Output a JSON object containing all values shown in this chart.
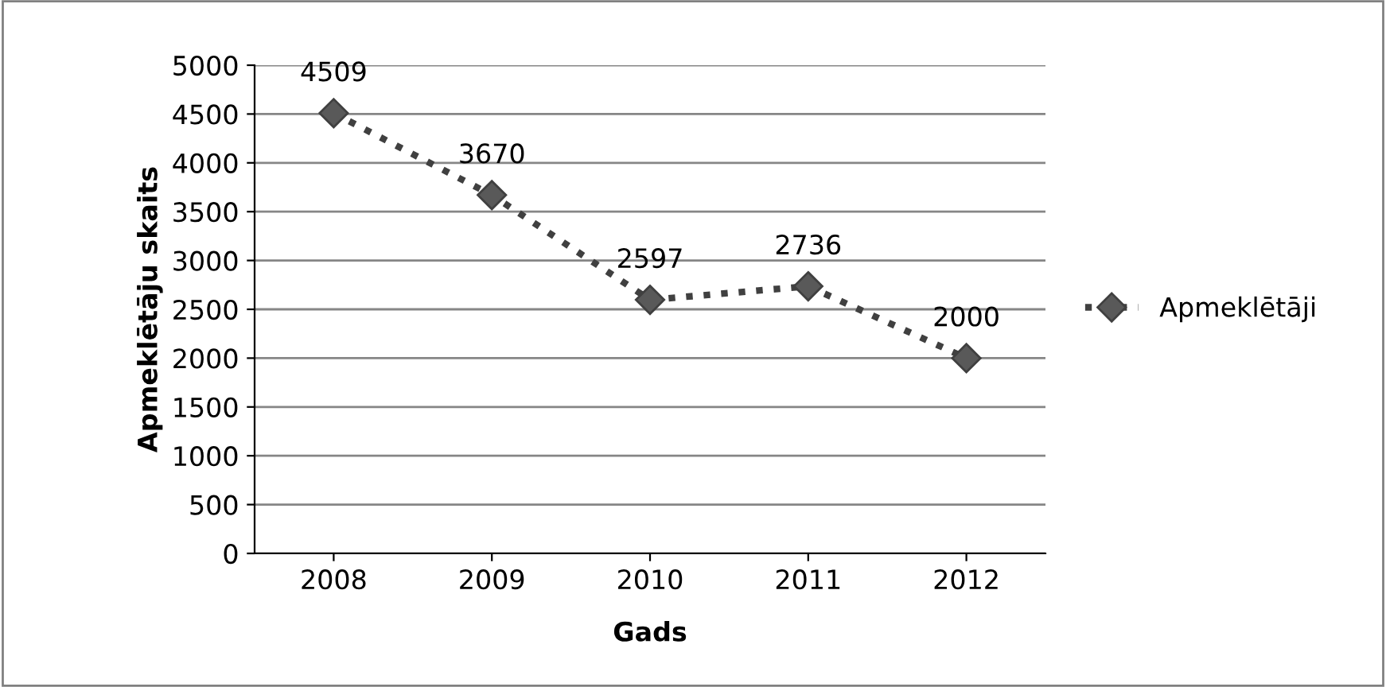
{
  "chart_data": {
    "type": "line",
    "xlabel": "Gads",
    "ylabel": "Apmeklētāju skaits",
    "categories": [
      "2008",
      "2009",
      "2010",
      "2011",
      "2012"
    ],
    "series": [
      {
        "name": "Apmeklētāji",
        "color": "#595959",
        "values": [
          4509,
          3670,
          2597,
          2736,
          2000
        ]
      }
    ],
    "ylim": [
      0,
      5000
    ],
    "yticks": [
      0,
      500,
      1000,
      1500,
      2000,
      2500,
      3000,
      3500,
      4000,
      4500,
      5000
    ],
    "grid": "y",
    "legend": "right",
    "marker": "diamond",
    "line_style": "dotted",
    "data_labels": true
  }
}
